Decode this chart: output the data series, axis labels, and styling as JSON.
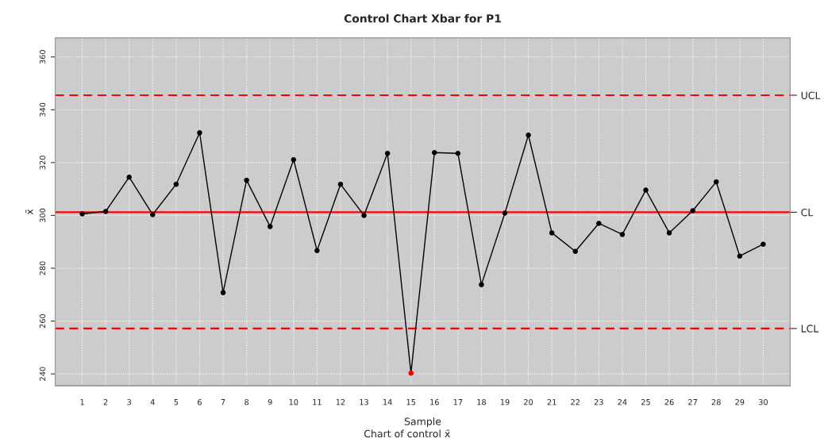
{
  "chart_data": {
    "type": "line",
    "title": "Control Chart Xbar for P1",
    "xlabel": "Sample",
    "ylabel": "x̄",
    "annotations": [
      "Chart of control x̄"
    ],
    "x": [
      1,
      2,
      3,
      4,
      5,
      6,
      7,
      8,
      9,
      10,
      11,
      12,
      13,
      14,
      15,
      16,
      17,
      18,
      19,
      20,
      21,
      22,
      23,
      24,
      25,
      26,
      27,
      28,
      29,
      30
    ],
    "series": [
      {
        "color": "#000000",
        "values": [
          300.6,
          301.5,
          314.5,
          300.3,
          311.8,
          331.3,
          270.8,
          313.3,
          295.8,
          321.1,
          286.7,
          311.8,
          300.0,
          323.5,
          240.3,
          323.8,
          323.5,
          273.8,
          300.9,
          330.4,
          293.4,
          286.4,
          297.0,
          292.8,
          309.6,
          293.4,
          301.8,
          312.7,
          284.6,
          289.1
        ],
        "colors": [
          "#000000",
          "#000000",
          "#000000",
          "#000000",
          "#000000",
          "#000000",
          "#000000",
          "#000000",
          "#000000",
          "#000000",
          "#000000",
          "#000000",
          "#000000",
          "#000000",
          "#ff0000",
          "#000000",
          "#000000",
          "#000000",
          "#000000",
          "#000000",
          "#000000",
          "#000000",
          "#000000",
          "#000000",
          "#000000",
          "#000000",
          "#000000",
          "#000000",
          "#000000",
          "#000000"
        ]
      }
    ],
    "xlim": [
      -0.15,
      31.15
    ],
    "xticks": [
      1,
      2,
      3,
      4,
      5,
      6,
      7,
      8,
      9,
      10,
      11,
      12,
      13,
      14,
      15,
      16,
      17,
      18,
      19,
      20,
      21,
      22,
      23,
      24,
      25,
      26,
      27,
      28,
      29,
      30
    ],
    "ylim": [
      235.5,
      367.2
    ],
    "yticks": [
      240,
      260,
      280,
      300,
      320,
      340,
      360
    ],
    "ref_lines": [
      {
        "axis": "y",
        "value": 345.5,
        "label": "UCL",
        "color": "#ff0000",
        "line_style": "dashed"
      },
      {
        "axis": "y",
        "value": 301.2,
        "label": "CL",
        "color": "#ff0000",
        "line_style": "solid"
      },
      {
        "axis": "y",
        "value": 257.2,
        "label": "LCL",
        "color": "#ff0000",
        "line_style": "dashed"
      }
    ],
    "grid": true,
    "marker": "circle",
    "line_style": "solid",
    "legend": false
  }
}
